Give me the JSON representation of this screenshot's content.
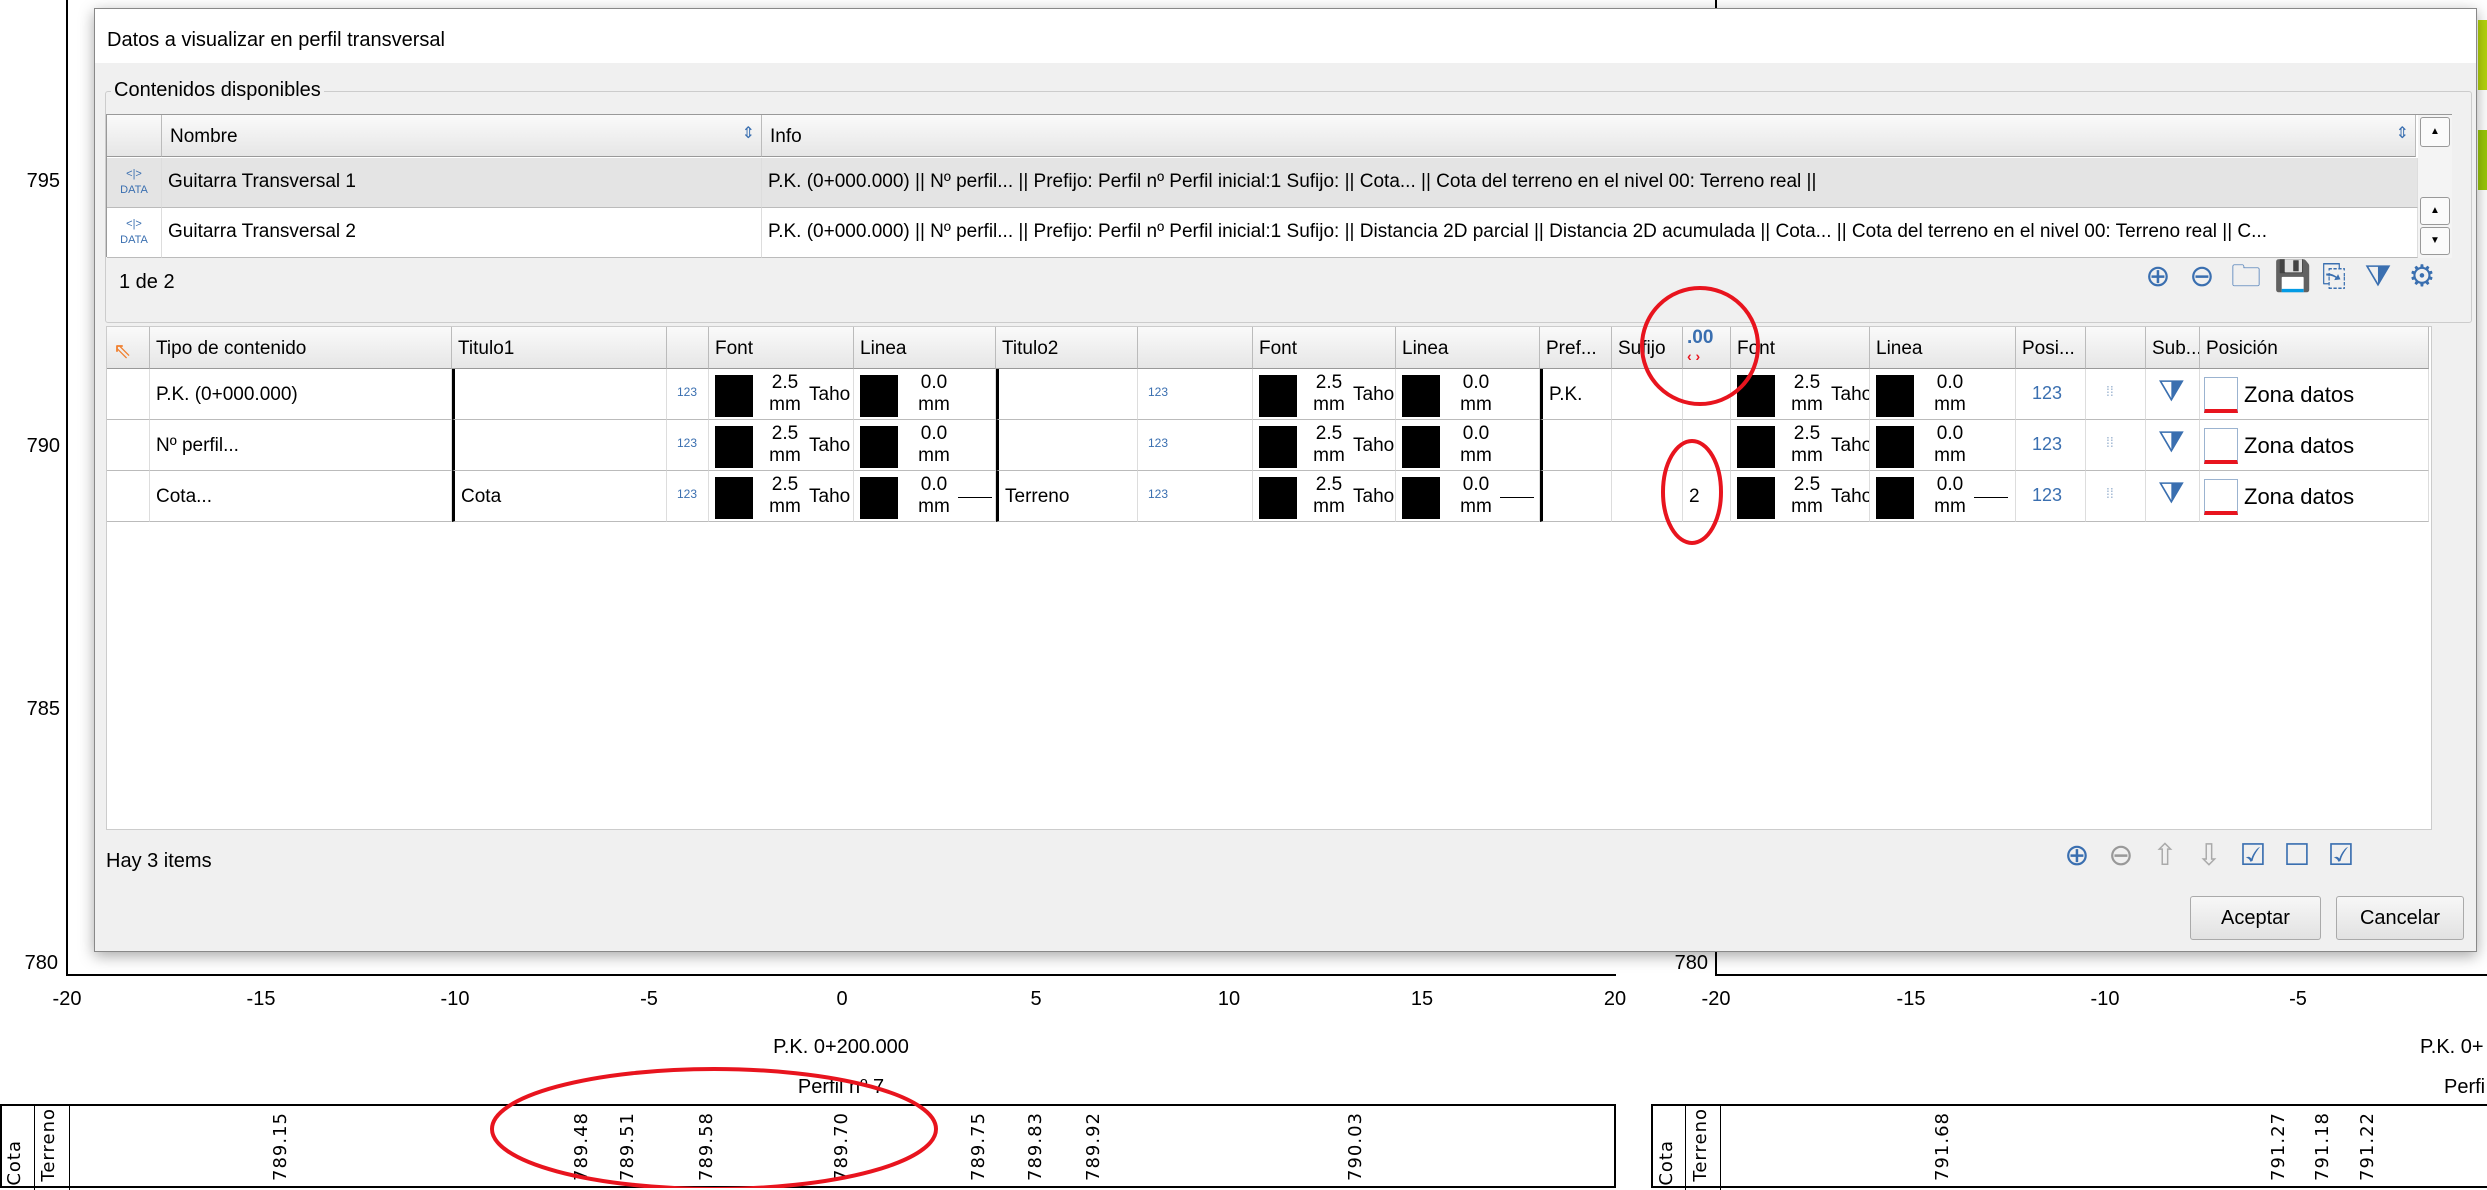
{
  "chart_left": {
    "y_ticks": [
      "795",
      "790",
      "785",
      "780"
    ],
    "x_ticks": [
      "-20",
      "-15",
      "-10",
      "-5",
      "0",
      "5",
      "10",
      "15",
      "20"
    ],
    "pk_label": "P.K. 0+200.000",
    "perfil_label": "Perfil nº 7",
    "band_labels": [
      "Cota",
      "Terreno"
    ],
    "values": [
      "789.15",
      "789.48",
      "789.51",
      "789.58",
      "789.70",
      "789.75",
      "789.83",
      "789.92",
      "790.03"
    ]
  },
  "chart_right": {
    "y_tick": "780",
    "x_ticks": [
      "-20",
      "-15",
      "-10",
      "-5"
    ],
    "pk_label": "P.K. 0+",
    "perfil_label": "Perfi",
    "band_labels": [
      "Cota",
      "Terreno"
    ],
    "values": [
      "791.68",
      "791.27",
      "791.18",
      "791.22"
    ]
  },
  "dialog": {
    "title": "Datos a visualizar en perfil transversal",
    "group_title": "Contenidos disponibles",
    "available": {
      "headers": [
        "Nombre",
        "Info"
      ],
      "rows": [
        {
          "icon": "DATA",
          "name": "Guitarra Transversal 1",
          "info": "P.K. (0+000.000) || Nº perfil... || Prefijo: Perfil nº  Perfil inicial:1 Sufijo: || Cota... || Cota del terreno en el nivel 00: Terreno real ||"
        },
        {
          "icon": "DATA",
          "name": "Guitarra Transversal 2",
          "info": "P.K. (0+000.000) || Nº perfil... || Prefijo: Perfil nº  Perfil inicial:1 Sufijo: || Distancia 2D parcial || Distancia 2D acumulada || Cota... || Cota del terreno en el nivel 00: Terreno real || C..."
        }
      ],
      "pager": "1 de 2"
    },
    "items": {
      "headers": [
        "",
        "Tipo de contenido",
        "Titulo1",
        "",
        "Font",
        "Linea",
        "Titulo2",
        "",
        "Font",
        "Linea",
        "Pref...",
        "Sufijo",
        ".00",
        "Font",
        "Linea",
        "Posi...",
        "",
        "Sub...",
        "Posición"
      ],
      "rows": [
        {
          "tipo": "P.K. (0+000.000)",
          "titulo1": "",
          "font1": "2.5 mm",
          "fontname1": "Taho",
          "linea1": "0.0 mm",
          "titulo2": "",
          "font2": "2.5 mm",
          "fontname2": "Taho",
          "linea2": "0.0 mm",
          "prefijo": "P.K.",
          "sufijo": "",
          "decimales": "",
          "font3": "2.5 mm",
          "fontname3": "Taho",
          "linea3": "0.0 mm",
          "posicion": "Zona datos"
        },
        {
          "tipo": "Nº perfil...",
          "titulo1": "",
          "font1": "2.5 mm",
          "fontname1": "Taho",
          "linea1": "0.0 mm",
          "titulo2": "",
          "font2": "2.5 mm",
          "fontname2": "Taho",
          "linea2": "0.0 mm",
          "prefijo": "",
          "sufijo": "",
          "decimales": "",
          "font3": "2.5 mm",
          "fontname3": "Taho",
          "linea3": "0.0 mm",
          "posicion": "Zona datos"
        },
        {
          "tipo": "Cota...",
          "titulo1": "Cota",
          "font1": "2.5 mm",
          "fontname1": "Taho",
          "linea1": "0.0 mm",
          "titulo2": "Terreno",
          "font2": "2.5 mm",
          "fontname2": "Taho",
          "linea2": "0.0 mm",
          "prefijo": "",
          "sufijo": "",
          "decimales": "2",
          "font3": "2.5 mm",
          "fontname3": "Taho",
          "linea3": "0.0 mm",
          "posicion": "Zona datos"
        }
      ],
      "count": "Hay 3 items"
    },
    "accept": "Aceptar",
    "cancel": "Cancelar"
  },
  "colors": {
    "accent": "#3a6fb0",
    "annotation": "#e8141e",
    "swatch": "#000000"
  }
}
